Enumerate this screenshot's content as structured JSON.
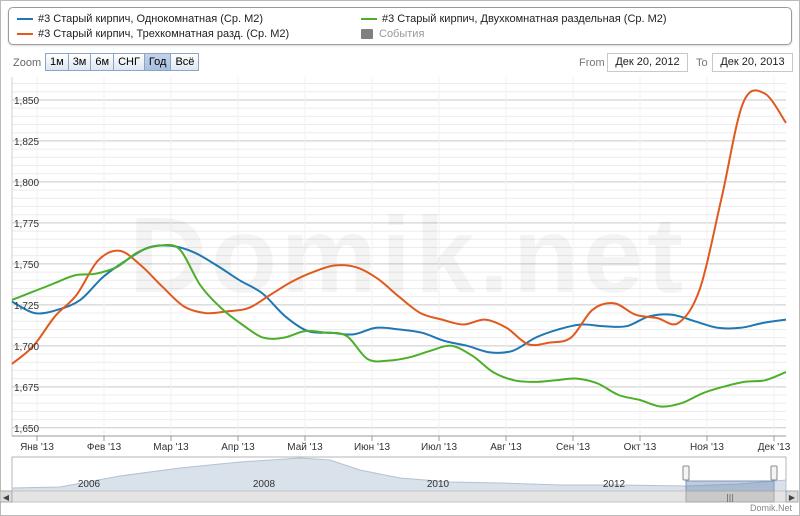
{
  "legend": {
    "items": [
      {
        "label": "#3 Старый кирпич, Однокомнатная (Ср. M2)",
        "color": "#1f77b4"
      },
      {
        "label": "#3 Старый кирпич, Трехкомнатная разд. (Ср. M2)",
        "color": "#e05a1e"
      },
      {
        "label": "#3 Старый кирпич, Двухкомнатная раздельная (Ср. M2)",
        "color": "#4caf2a"
      },
      {
        "label": "События",
        "color": "#808080"
      }
    ]
  },
  "toolbar": {
    "zoom_label": "Zoom",
    "zoom_buttons": [
      "1м",
      "3м",
      "6м",
      "СНГ",
      "Год",
      "Всё"
    ],
    "from_label": "From",
    "from_value": "Дек 20, 2012",
    "to_label": "To",
    "to_value": "Дек 20, 2013"
  },
  "watermark": "Domik.net",
  "credit": "Domik.Net",
  "navigator": {
    "year_labels": [
      "2006",
      "2008",
      "2010",
      "2012"
    ]
  },
  "chart_data": {
    "type": "line",
    "x_tick_labels": [
      "Янв '13",
      "Фев '13",
      "Мар '13",
      "Апр '13",
      "Май '13",
      "Июн '13",
      "Июл '13",
      "Авг '13",
      "Сен '13",
      "Окт '13",
      "Ноя '13",
      "Дек '13"
    ],
    "y_tick_labels": [
      "1,650",
      "1,675",
      "1,700",
      "1,725",
      "1,750",
      "1,775",
      "1,800",
      "1,825",
      "1,850"
    ],
    "ylim": [
      1645,
      1864
    ],
    "grid": true,
    "legend_position": "top",
    "series": [
      {
        "name": "#3 Старый кирпич, Однокомнатная (Ср. M2)",
        "color": "#1f77b4",
        "values": [
          1727,
          1720,
          1722,
          1728,
          1742,
          1752,
          1760,
          1761,
          1757,
          1749,
          1740,
          1732,
          1718,
          1709,
          1708,
          1707,
          1711,
          1710,
          1708,
          1703,
          1700,
          1696,
          1697,
          1705,
          1710,
          1713,
          1712,
          1712,
          1718,
          1719,
          1715,
          1711,
          1711,
          1714,
          1716
        ]
      },
      {
        "name": "#3 Старый кирпич, Трехкомнатная разд. (Ср. M2)",
        "color": "#e05a1e",
        "values": [
          1689,
          1700,
          1718,
          1731,
          1752,
          1758,
          1749,
          1736,
          1724,
          1720,
          1721,
          1723,
          1731,
          1739,
          1745,
          1749,
          1748,
          1741,
          1730,
          1720,
          1716,
          1713,
          1716,
          1711,
          1701,
          1702,
          1705,
          1722,
          1726,
          1719,
          1717,
          1714,
          1735,
          1790,
          1848,
          1854,
          1836
        ]
      },
      {
        "name": "#3 Старый кирпич, Двухкомнатная раздельная (Ср. M2)",
        "color": "#4caf2a",
        "values": [
          1728,
          1733,
          1738,
          1743,
          1744,
          1748,
          1757,
          1761,
          1759,
          1737,
          1723,
          1713,
          1705,
          1705,
          1709,
          1708,
          1706,
          1692,
          1691,
          1693,
          1697,
          1700,
          1694,
          1684,
          1679,
          1678,
          1679,
          1680,
          1677,
          1670,
          1667,
          1663,
          1665,
          1671,
          1675,
          1678,
          1679,
          1684
        ]
      }
    ]
  }
}
